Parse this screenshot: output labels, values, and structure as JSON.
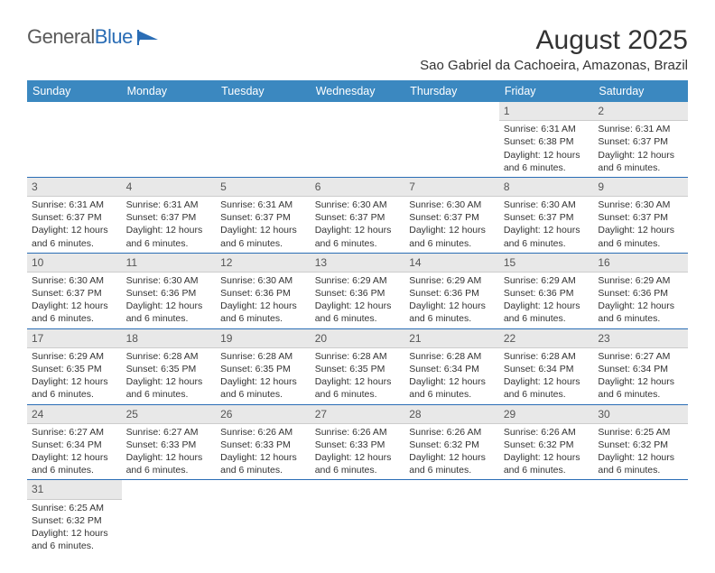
{
  "logo": {
    "text1": "General",
    "text2": "Blue"
  },
  "title": "August 2025",
  "location": "Sao Gabriel da Cachoeira, Amazonas, Brazil",
  "colors": {
    "header_bg": "#3b88c0",
    "header_text": "#ffffff",
    "daynum_bg": "#e8e8e8",
    "border": "#2a6db5",
    "logo_blue": "#2a6db5"
  },
  "fonts": {
    "title_size": 30,
    "location_size": 15,
    "dayheader_size": 12.5,
    "body_size": 10.5
  },
  "day_headers": [
    "Sunday",
    "Monday",
    "Tuesday",
    "Wednesday",
    "Thursday",
    "Friday",
    "Saturday"
  ],
  "weeks": [
    [
      {
        "n": "",
        "l1": "",
        "l2": "",
        "l3": "",
        "l4": "",
        "empty": true
      },
      {
        "n": "",
        "l1": "",
        "l2": "",
        "l3": "",
        "l4": "",
        "empty": true
      },
      {
        "n": "",
        "l1": "",
        "l2": "",
        "l3": "",
        "l4": "",
        "empty": true
      },
      {
        "n": "",
        "l1": "",
        "l2": "",
        "l3": "",
        "l4": "",
        "empty": true
      },
      {
        "n": "",
        "l1": "",
        "l2": "",
        "l3": "",
        "l4": "",
        "empty": true
      },
      {
        "n": "1",
        "l1": "Sunrise: 6:31 AM",
        "l2": "Sunset: 6:38 PM",
        "l3": "Daylight: 12 hours",
        "l4": "and 6 minutes."
      },
      {
        "n": "2",
        "l1": "Sunrise: 6:31 AM",
        "l2": "Sunset: 6:37 PM",
        "l3": "Daylight: 12 hours",
        "l4": "and 6 minutes."
      }
    ],
    [
      {
        "n": "3",
        "l1": "Sunrise: 6:31 AM",
        "l2": "Sunset: 6:37 PM",
        "l3": "Daylight: 12 hours",
        "l4": "and 6 minutes."
      },
      {
        "n": "4",
        "l1": "Sunrise: 6:31 AM",
        "l2": "Sunset: 6:37 PM",
        "l3": "Daylight: 12 hours",
        "l4": "and 6 minutes."
      },
      {
        "n": "5",
        "l1": "Sunrise: 6:31 AM",
        "l2": "Sunset: 6:37 PM",
        "l3": "Daylight: 12 hours",
        "l4": "and 6 minutes."
      },
      {
        "n": "6",
        "l1": "Sunrise: 6:30 AM",
        "l2": "Sunset: 6:37 PM",
        "l3": "Daylight: 12 hours",
        "l4": "and 6 minutes."
      },
      {
        "n": "7",
        "l1": "Sunrise: 6:30 AM",
        "l2": "Sunset: 6:37 PM",
        "l3": "Daylight: 12 hours",
        "l4": "and 6 minutes."
      },
      {
        "n": "8",
        "l1": "Sunrise: 6:30 AM",
        "l2": "Sunset: 6:37 PM",
        "l3": "Daylight: 12 hours",
        "l4": "and 6 minutes."
      },
      {
        "n": "9",
        "l1": "Sunrise: 6:30 AM",
        "l2": "Sunset: 6:37 PM",
        "l3": "Daylight: 12 hours",
        "l4": "and 6 minutes."
      }
    ],
    [
      {
        "n": "10",
        "l1": "Sunrise: 6:30 AM",
        "l2": "Sunset: 6:37 PM",
        "l3": "Daylight: 12 hours",
        "l4": "and 6 minutes."
      },
      {
        "n": "11",
        "l1": "Sunrise: 6:30 AM",
        "l2": "Sunset: 6:36 PM",
        "l3": "Daylight: 12 hours",
        "l4": "and 6 minutes."
      },
      {
        "n": "12",
        "l1": "Sunrise: 6:30 AM",
        "l2": "Sunset: 6:36 PM",
        "l3": "Daylight: 12 hours",
        "l4": "and 6 minutes."
      },
      {
        "n": "13",
        "l1": "Sunrise: 6:29 AM",
        "l2": "Sunset: 6:36 PM",
        "l3": "Daylight: 12 hours",
        "l4": "and 6 minutes."
      },
      {
        "n": "14",
        "l1": "Sunrise: 6:29 AM",
        "l2": "Sunset: 6:36 PM",
        "l3": "Daylight: 12 hours",
        "l4": "and 6 minutes."
      },
      {
        "n": "15",
        "l1": "Sunrise: 6:29 AM",
        "l2": "Sunset: 6:36 PM",
        "l3": "Daylight: 12 hours",
        "l4": "and 6 minutes."
      },
      {
        "n": "16",
        "l1": "Sunrise: 6:29 AM",
        "l2": "Sunset: 6:36 PM",
        "l3": "Daylight: 12 hours",
        "l4": "and 6 minutes."
      }
    ],
    [
      {
        "n": "17",
        "l1": "Sunrise: 6:29 AM",
        "l2": "Sunset: 6:35 PM",
        "l3": "Daylight: 12 hours",
        "l4": "and 6 minutes."
      },
      {
        "n": "18",
        "l1": "Sunrise: 6:28 AM",
        "l2": "Sunset: 6:35 PM",
        "l3": "Daylight: 12 hours",
        "l4": "and 6 minutes."
      },
      {
        "n": "19",
        "l1": "Sunrise: 6:28 AM",
        "l2": "Sunset: 6:35 PM",
        "l3": "Daylight: 12 hours",
        "l4": "and 6 minutes."
      },
      {
        "n": "20",
        "l1": "Sunrise: 6:28 AM",
        "l2": "Sunset: 6:35 PM",
        "l3": "Daylight: 12 hours",
        "l4": "and 6 minutes."
      },
      {
        "n": "21",
        "l1": "Sunrise: 6:28 AM",
        "l2": "Sunset: 6:34 PM",
        "l3": "Daylight: 12 hours",
        "l4": "and 6 minutes."
      },
      {
        "n": "22",
        "l1": "Sunrise: 6:28 AM",
        "l2": "Sunset: 6:34 PM",
        "l3": "Daylight: 12 hours",
        "l4": "and 6 minutes."
      },
      {
        "n": "23",
        "l1": "Sunrise: 6:27 AM",
        "l2": "Sunset: 6:34 PM",
        "l3": "Daylight: 12 hours",
        "l4": "and 6 minutes."
      }
    ],
    [
      {
        "n": "24",
        "l1": "Sunrise: 6:27 AM",
        "l2": "Sunset: 6:34 PM",
        "l3": "Daylight: 12 hours",
        "l4": "and 6 minutes."
      },
      {
        "n": "25",
        "l1": "Sunrise: 6:27 AM",
        "l2": "Sunset: 6:33 PM",
        "l3": "Daylight: 12 hours",
        "l4": "and 6 minutes."
      },
      {
        "n": "26",
        "l1": "Sunrise: 6:26 AM",
        "l2": "Sunset: 6:33 PM",
        "l3": "Daylight: 12 hours",
        "l4": "and 6 minutes."
      },
      {
        "n": "27",
        "l1": "Sunrise: 6:26 AM",
        "l2": "Sunset: 6:33 PM",
        "l3": "Daylight: 12 hours",
        "l4": "and 6 minutes."
      },
      {
        "n": "28",
        "l1": "Sunrise: 6:26 AM",
        "l2": "Sunset: 6:32 PM",
        "l3": "Daylight: 12 hours",
        "l4": "and 6 minutes."
      },
      {
        "n": "29",
        "l1": "Sunrise: 6:26 AM",
        "l2": "Sunset: 6:32 PM",
        "l3": "Daylight: 12 hours",
        "l4": "and 6 minutes."
      },
      {
        "n": "30",
        "l1": "Sunrise: 6:25 AM",
        "l2": "Sunset: 6:32 PM",
        "l3": "Daylight: 12 hours",
        "l4": "and 6 minutes."
      }
    ],
    [
      {
        "n": "31",
        "l1": "Sunrise: 6:25 AM",
        "l2": "Sunset: 6:32 PM",
        "l3": "Daylight: 12 hours",
        "l4": "and 6 minutes."
      },
      {
        "n": "",
        "l1": "",
        "l2": "",
        "l3": "",
        "l4": "",
        "empty": true
      },
      {
        "n": "",
        "l1": "",
        "l2": "",
        "l3": "",
        "l4": "",
        "empty": true
      },
      {
        "n": "",
        "l1": "",
        "l2": "",
        "l3": "",
        "l4": "",
        "empty": true
      },
      {
        "n": "",
        "l1": "",
        "l2": "",
        "l3": "",
        "l4": "",
        "empty": true
      },
      {
        "n": "",
        "l1": "",
        "l2": "",
        "l3": "",
        "l4": "",
        "empty": true
      },
      {
        "n": "",
        "l1": "",
        "l2": "",
        "l3": "",
        "l4": "",
        "empty": true
      }
    ]
  ]
}
